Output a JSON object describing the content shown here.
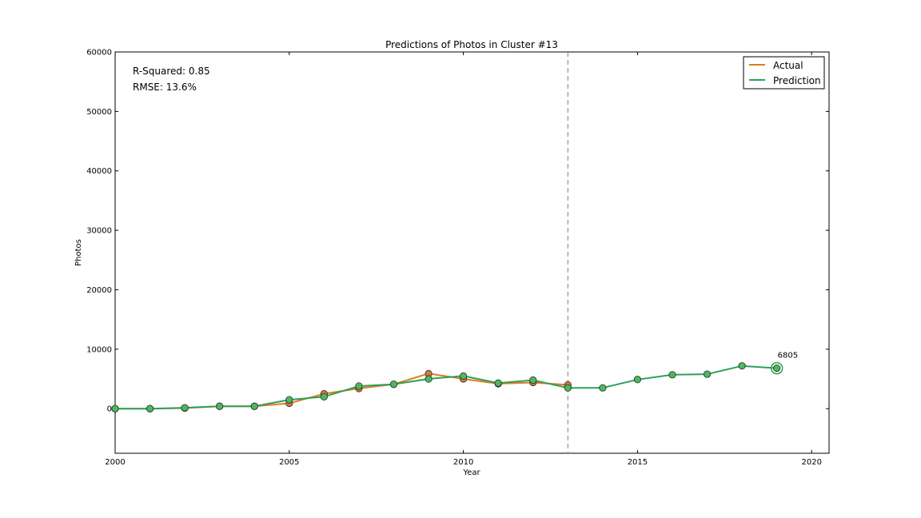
{
  "chart_data": {
    "type": "line",
    "title": "Predictions of Photos in Cluster #13",
    "xlabel": "Year",
    "ylabel": "Photos",
    "xlim": [
      2000,
      2020.5
    ],
    "ylim": [
      -7500,
      60000
    ],
    "xticks": [
      2000,
      2005,
      2010,
      2015,
      2020
    ],
    "yticks": [
      0,
      10000,
      20000,
      30000,
      40000,
      50000,
      60000
    ],
    "grid": false,
    "legend_position": "top-right",
    "stats": {
      "r_squared": "R-Squared: 0.85",
      "rmse": "RMSE: 13.6%"
    },
    "vertical_line_x": 2013,
    "series": [
      {
        "name": "Actual",
        "color": "#e07b1f",
        "marker_color": "#d9763a",
        "x": [
          2000,
          2001,
          2002,
          2003,
          2004,
          2005,
          2006,
          2007,
          2008,
          2009,
          2010,
          2011,
          2012,
          2013
        ],
        "y": [
          0,
          0,
          100,
          400,
          400,
          900,
          2500,
          3400,
          4100,
          5900,
          5000,
          4200,
          4400,
          4000
        ]
      },
      {
        "name": "Prediction",
        "color": "#2ca05a",
        "marker_color": "#4cb85c",
        "x": [
          2000,
          2001,
          2002,
          2003,
          2004,
          2005,
          2006,
          2007,
          2008,
          2009,
          2010,
          2011,
          2012,
          2013,
          2014,
          2015,
          2016,
          2017,
          2018,
          2019
        ],
        "y": [
          0,
          0,
          150,
          400,
          400,
          1500,
          2000,
          3800,
          4100,
          5000,
          5500,
          4300,
          4800,
          3500,
          3500,
          4900,
          5700,
          5800,
          7200,
          6805
        ]
      }
    ],
    "annotation": {
      "x": 2019,
      "y": 6805,
      "text": "6805"
    }
  }
}
